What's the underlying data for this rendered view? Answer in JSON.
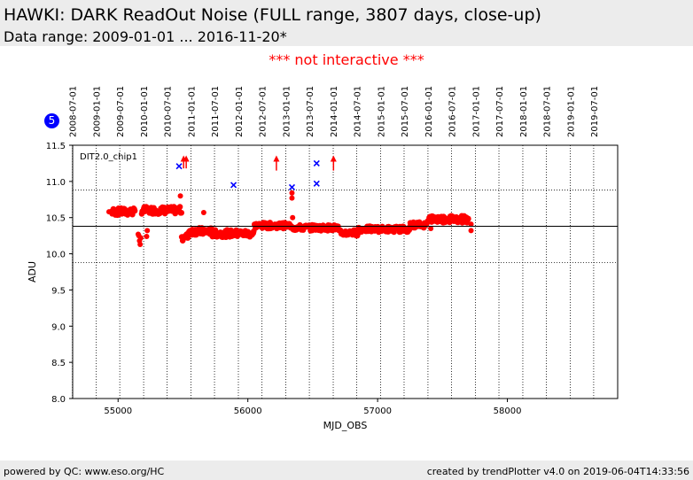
{
  "header": {
    "title": "HAWKI: DARK ReadOut Noise (FULL range, 3807 days, close-up)",
    "subtitle": "Data range: 2009-01-01 ... 2016-11-20*"
  },
  "notice": "*** not interactive ***",
  "badge": "5",
  "footer": {
    "left": "powered by QC: www.eso.org/HC",
    "right": "created by trendPlotter v4.0 on 2019-06-04T14:33:56"
  },
  "colors": {
    "points": "#ff0000",
    "outliers": "#0000ff",
    "badge": "#0000ff",
    "notice": "#ff0000"
  },
  "chart_data": {
    "type": "scatter",
    "panel_label": "DIT2.0_chip1",
    "xlabel": "MJD_OBS",
    "ylabel": "ADU",
    "xlim": [
      54650,
      58850
    ],
    "ylim": [
      8.0,
      11.5
    ],
    "x_ticks": [
      55000,
      56000,
      57000,
      58000
    ],
    "y_ticks": [
      8.0,
      8.5,
      9.0,
      9.5,
      10.0,
      10.5,
      11.0,
      11.5
    ],
    "date_ticks": [
      {
        "label": "2008-07-01",
        "mjd": 54648
      },
      {
        "label": "2009-01-01",
        "mjd": 54832
      },
      {
        "label": "2009-07-01",
        "mjd": 55013
      },
      {
        "label": "2010-01-01",
        "mjd": 55197
      },
      {
        "label": "2010-07-01",
        "mjd": 55378
      },
      {
        "label": "2011-01-01",
        "mjd": 55562
      },
      {
        "label": "2011-07-01",
        "mjd": 55743
      },
      {
        "label": "2012-01-01",
        "mjd": 55927
      },
      {
        "label": "2012-07-01",
        "mjd": 56109
      },
      {
        "label": "2013-01-01",
        "mjd": 56293
      },
      {
        "label": "2013-07-01",
        "mjd": 56474
      },
      {
        "label": "2014-01-01",
        "mjd": 56658
      },
      {
        "label": "2014-07-01",
        "mjd": 56839
      },
      {
        "label": "2015-01-01",
        "mjd": 57023
      },
      {
        "label": "2015-07-01",
        "mjd": 57204
      },
      {
        "label": "2016-01-01",
        "mjd": 57388
      },
      {
        "label": "2016-07-01",
        "mjd": 57570
      },
      {
        "label": "2017-01-01",
        "mjd": 57754
      },
      {
        "label": "2017-07-01",
        "mjd": 57935
      },
      {
        "label": "2018-01-01",
        "mjd": 58119
      },
      {
        "label": "2018-07-01",
        "mjd": 58300
      },
      {
        "label": "2019-01-01",
        "mjd": 58484
      },
      {
        "label": "2019-07-01",
        "mjd": 58665
      }
    ],
    "reference_line": 10.38,
    "threshold_lines": [
      10.88,
      9.88
    ],
    "grid": "vertical dotted at date ticks",
    "segments": [
      {
        "x0": 54950,
        "x1": 55130,
        "y": 10.58,
        "spread": 0.05,
        "count": 40
      },
      {
        "x0": 55180,
        "x1": 55490,
        "y": 10.6,
        "spread": 0.05,
        "count": 60
      },
      {
        "x0": 55490,
        "x1": 55540,
        "y": 10.23,
        "spread": 0.05,
        "count": 8
      },
      {
        "x0": 55540,
        "x1": 55720,
        "y": 10.31,
        "spread": 0.05,
        "count": 40
      },
      {
        "x0": 55720,
        "x1": 56050,
        "y": 10.28,
        "spread": 0.05,
        "count": 60
      },
      {
        "x0": 56050,
        "x1": 56350,
        "y": 10.39,
        "spread": 0.04,
        "count": 60
      },
      {
        "x0": 56350,
        "x1": 56700,
        "y": 10.36,
        "spread": 0.04,
        "count": 60
      },
      {
        "x0": 56700,
        "x1": 56850,
        "y": 10.29,
        "spread": 0.04,
        "count": 30
      },
      {
        "x0": 56850,
        "x1": 57250,
        "y": 10.34,
        "spread": 0.04,
        "count": 70
      },
      {
        "x0": 57250,
        "x1": 57380,
        "y": 10.4,
        "spread": 0.04,
        "count": 25
      },
      {
        "x0": 57380,
        "x1": 57700,
        "y": 10.48,
        "spread": 0.05,
        "count": 70
      }
    ],
    "points": [
      {
        "x": 55160,
        "y": 10.25
      },
      {
        "x": 55165,
        "y": 10.18
      },
      {
        "x": 55170,
        "y": 10.13
      },
      {
        "x": 55155,
        "y": 10.27
      },
      {
        "x": 55175,
        "y": 10.22
      },
      {
        "x": 55220,
        "y": 10.24
      },
      {
        "x": 55225,
        "y": 10.32
      },
      {
        "x": 55480,
        "y": 10.8
      },
      {
        "x": 55660,
        "y": 10.57
      },
      {
        "x": 56340,
        "y": 10.77
      },
      {
        "x": 56340,
        "y": 10.84
      },
      {
        "x": 56345,
        "y": 10.5
      },
      {
        "x": 57410,
        "y": 10.35
      },
      {
        "x": 57720,
        "y": 10.32
      },
      {
        "x": 54930,
        "y": 10.58
      },
      {
        "x": 57720,
        "y": 10.41
      }
    ],
    "outliers": [
      {
        "x": 55470,
        "y": 11.21
      },
      {
        "x": 55890,
        "y": 10.95
      },
      {
        "x": 56340,
        "y": 10.92
      },
      {
        "x": 56530,
        "y": 11.25
      },
      {
        "x": 56530,
        "y": 10.97
      }
    ],
    "arrows": [
      {
        "x": 55505,
        "y0": 11.18,
        "y1": 11.36
      },
      {
        "x": 55525,
        "y0": 11.18,
        "y1": 11.36
      },
      {
        "x": 56220,
        "y0": 11.15,
        "y1": 11.36
      },
      {
        "x": 56660,
        "y0": 11.15,
        "y1": 11.36
      }
    ]
  }
}
